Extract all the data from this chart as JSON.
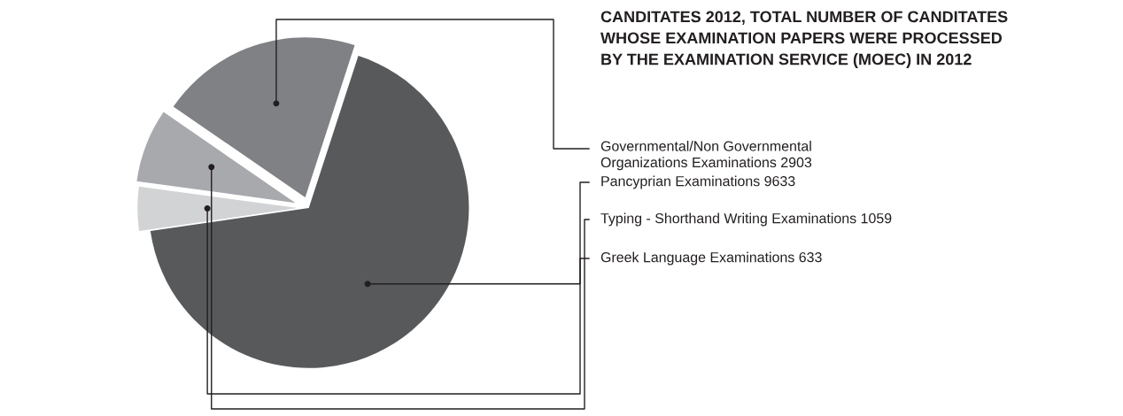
{
  "chart_data": {
    "type": "pie",
    "title": "CANDITATES 2012, TOTAL NUMBER OF CANDITATES\nWHOSE EXAMINATION PAPERS WERE PROCESSED\nBY THE EXAMINATION SERVICE (MOEC) IN 2012",
    "categories": [
      "Governmental/Non Governmental\nOrganizations Examinations 2903",
      "Pancyprian Examinations 9633",
      "Typing - Shorthand Writing Examinations 1059",
      "Greek Language Examinations 633"
    ],
    "values": [
      2903,
      9633,
      1059,
      633
    ],
    "colors": [
      "#808184",
      "#58595b",
      "#a7a9ac",
      "#d1d3d4"
    ]
  }
}
